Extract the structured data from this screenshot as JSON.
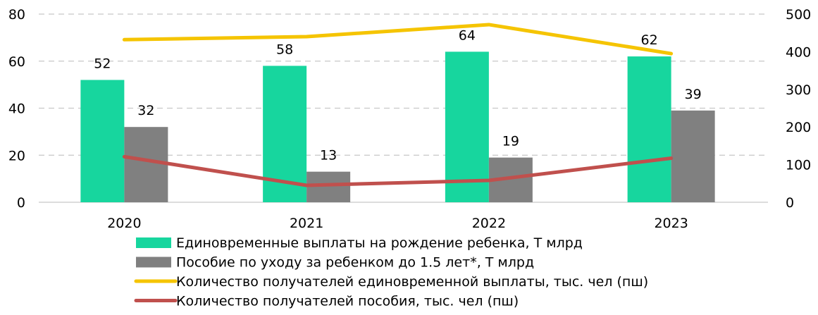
{
  "chart_data": {
    "type": "bar",
    "categories": [
      "2020",
      "2021",
      "2022",
      "2023"
    ],
    "y_left": {
      "ylim": [
        0,
        80
      ],
      "ticks": [
        0,
        20,
        40,
        60,
        80
      ]
    },
    "y_right": {
      "ylim": [
        0,
        500
      ],
      "ticks": [
        0,
        100,
        200,
        300,
        400,
        500
      ]
    },
    "grid": true,
    "legend_position": "bottom",
    "series": [
      {
        "name": "Единовременные выплаты на рождение ребенка, Т млрд",
        "kind": "bar",
        "axis": "left",
        "color": "#17d69e",
        "values": [
          52,
          58,
          64,
          62
        ],
        "labels": [
          "52",
          "58",
          "64",
          "62"
        ]
      },
      {
        "name": "Пособие по уходу за ребенком до 1.5 лет*, Т млрд",
        "kind": "bar",
        "axis": "left",
        "color": "#808080",
        "values": [
          32,
          13,
          19,
          39
        ],
        "labels": [
          "32",
          "13",
          "19",
          "39"
        ]
      },
      {
        "name": "Количество получателей единовременной выплаты, тыс. чел (пш)",
        "kind": "line",
        "axis": "right",
        "color": "#f5c400",
        "values": [
          432,
          440,
          472,
          395
        ]
      },
      {
        "name": "Количество получателей пособия, тыс. чел (пш)",
        "kind": "line",
        "axis": "right",
        "color": "#c0504d",
        "values": [
          121,
          45,
          58,
          117
        ]
      }
    ]
  }
}
